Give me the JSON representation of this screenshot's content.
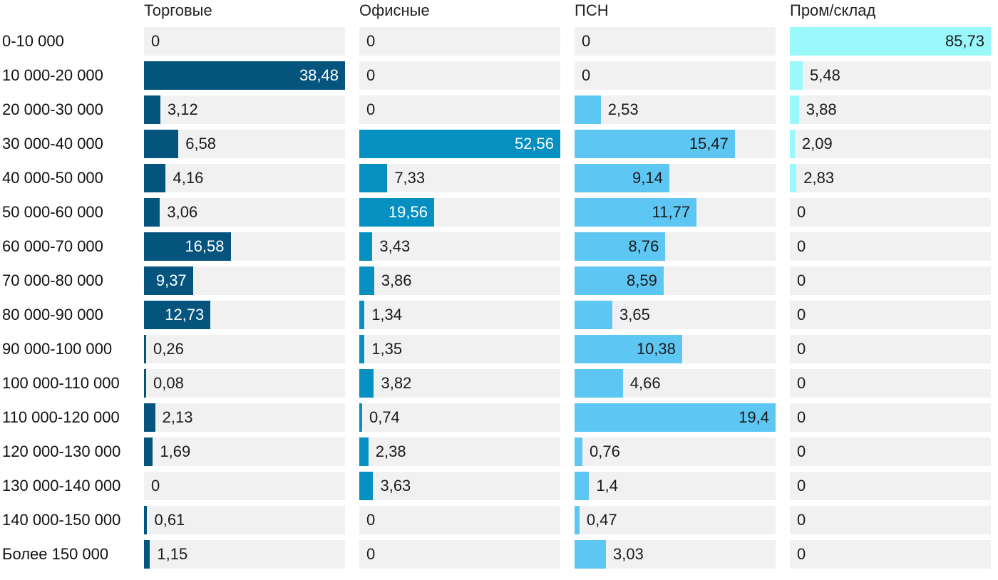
{
  "chart_data": {
    "type": "bar",
    "orientation": "horizontal",
    "layout": "small-multiples",
    "title": "",
    "xlabel": "",
    "ylabel": "",
    "categories": [
      "0-10 000",
      "10 000-20 000",
      "20 000-30 000",
      "30 000-40 000",
      "40 000-50 000",
      "50 000-60 000",
      "60 000-70 000",
      "70 000-80 000",
      "80 000-90 000",
      "90 000-100 000",
      "100 000-110 000",
      "110 000-120 000",
      "120 000-130 000",
      "130 000-140 000",
      "140 000-150 000",
      "Более 150 000"
    ],
    "series": [
      {
        "name": "Торговые",
        "color": "#04547e",
        "text_color_inside": "#ffffff",
        "values": [
          0,
          38.48,
          3.12,
          6.58,
          4.16,
          3.06,
          16.58,
          9.37,
          12.73,
          0.26,
          0.08,
          2.13,
          1.69,
          0,
          0.61,
          1.15
        ],
        "labels": [
          "0",
          "38,48",
          "3,12",
          "6,58",
          "4,16",
          "3,06",
          "16,58",
          "9,37",
          "12,73",
          "0,26",
          "0,08",
          "2,13",
          "1,69",
          "0",
          "0,61",
          "1,15"
        ]
      },
      {
        "name": "Офисные",
        "color": "#0590c1",
        "text_color_inside": "#ffffff",
        "values": [
          0,
          0,
          0,
          52.56,
          7.33,
          19.56,
          3.43,
          3.86,
          1.34,
          1.35,
          3.82,
          0.74,
          2.38,
          3.63,
          0,
          0
        ],
        "labels": [
          "0",
          "0",
          "0",
          "52,56",
          "7,33",
          "19,56",
          "3,43",
          "3,86",
          "1,34",
          "1,35",
          "3,82",
          "0,74",
          "2,38",
          "3,63",
          "0",
          "0"
        ]
      },
      {
        "name": "ПСН",
        "color": "#5ec6f3",
        "text_color_inside": "#1a1a1a",
        "values": [
          0,
          0,
          2.53,
          15.47,
          9.14,
          11.77,
          8.76,
          8.59,
          3.65,
          10.38,
          4.66,
          19.4,
          0.76,
          1.4,
          0.47,
          3.03
        ],
        "labels": [
          "0",
          "0",
          "2,53",
          "15,47",
          "9,14",
          "11,77",
          "8,76",
          "8,59",
          "3,65",
          "10,38",
          "4,66",
          "19,4",
          "0,76",
          "1,4",
          "0,47",
          "3,03"
        ]
      },
      {
        "name": "Пром/склад",
        "color": "#9af8fb",
        "text_color_inside": "#1a1a1a",
        "values": [
          85.73,
          5.48,
          3.88,
          2.09,
          2.83,
          0,
          0,
          0,
          0,
          0,
          0,
          0,
          0,
          0,
          0,
          0
        ],
        "labels": [
          "85,73",
          "5,48",
          "3,88",
          "2,09",
          "2,83",
          "0",
          "0",
          "0",
          "0",
          "0",
          "0",
          "0",
          "0",
          "0",
          "0",
          "0"
        ]
      }
    ]
  }
}
